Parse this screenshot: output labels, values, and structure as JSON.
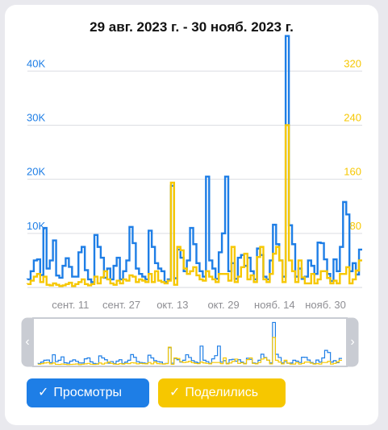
{
  "header": {
    "date_range": "29 авг. 2023 г. - 30 нояб. 2023 г."
  },
  "navigator": {
    "left_arrow": "‹",
    "right_arrow": "›"
  },
  "filters": [
    {
      "label": "Просмотры",
      "check": "✓",
      "color": "#1e7ee6"
    },
    {
      "label": "Поделились",
      "check": "✓",
      "color": "#f6c700"
    }
  ],
  "chart_data": {
    "type": "line",
    "x_tick_labels": [
      "сент. 11",
      "сент. 27",
      "окт. 13",
      "окт. 29",
      "нояб. 14",
      "нояб. 30"
    ],
    "x_tick_index": [
      13,
      29,
      45,
      61,
      77,
      93
    ],
    "y_left": {
      "ticks": [
        10000,
        20000,
        30000,
        40000
      ],
      "tick_labels": [
        "10K",
        "20K",
        "30K",
        "40K"
      ],
      "range": [
        0,
        46000
      ],
      "color": "#1e7ee6"
    },
    "y_right": {
      "ticks": [
        80,
        160,
        240,
        320
      ],
      "tick_labels": [
        "80",
        "160",
        "240",
        "320"
      ],
      "range": [
        0,
        368
      ],
      "color": "#f6c700"
    },
    "grid": true,
    "step": true,
    "series": [
      {
        "name": "Просмотры",
        "axis": "left",
        "color": "#1e7ee6",
        "values": [
          1500,
          3000,
          5000,
          5200,
          2300,
          11000,
          3500,
          5000,
          8700,
          2200,
          1800,
          4000,
          5400,
          3800,
          2000,
          2000,
          6500,
          7500,
          3200,
          1500,
          1000,
          9700,
          7500,
          5500,
          1800,
          3500,
          1500,
          4000,
          5500,
          1500,
          3000,
          5000,
          11200,
          8200,
          3500,
          2500,
          2000,
          1500,
          10500,
          7500,
          4500,
          3500,
          3000,
          1000,
          1500,
          18800,
          1700,
          7000,
          5500,
          3000,
          5000,
          11000,
          8000,
          4500,
          3000,
          2000,
          20500,
          5000,
          3500,
          1600,
          6500,
          10000,
          20500,
          3000,
          4500,
          1600,
          5500,
          6000,
          4000,
          5500,
          3000,
          1500,
          7200,
          6000,
          2000,
          1500,
          5000,
          11600,
          8000,
          5000,
          2000,
          46500,
          11500,
          8000,
          2000,
          3500,
          1600,
          2000,
          5000,
          4000,
          2500,
          8300,
          8200,
          5200,
          2500,
          1200,
          5200,
          3000,
          7500,
          15800,
          13500,
          3000,
          4500,
          2400,
          7000
        ]
      },
      {
        "name": "Поделились",
        "axis": "right",
        "color": "#f6c700",
        "values": [
          5,
          10,
          16,
          20,
          8,
          16,
          4,
          3,
          6,
          4,
          2,
          3,
          5,
          7,
          2,
          5,
          8,
          12,
          5,
          3,
          5,
          16,
          6,
          15,
          24,
          12,
          6,
          4,
          10,
          6,
          12,
          10,
          18,
          16,
          8,
          12,
          10,
          8,
          20,
          8,
          24,
          10,
          8,
          6,
          10,
          155,
          4,
          60,
          55,
          28,
          20,
          24,
          30,
          18,
          12,
          10,
          24,
          16,
          12,
          8,
          20,
          20,
          20,
          10,
          60,
          8,
          16,
          30,
          50,
          12,
          18,
          8,
          45,
          60,
          12,
          8,
          20,
          50,
          60,
          40,
          8,
          240,
          40,
          24,
          8,
          40,
          15,
          6,
          6,
          20,
          6,
          12,
          24,
          24,
          14,
          6,
          10,
          6,
          20,
          20,
          30,
          6,
          12,
          25,
          40
        ]
      }
    ]
  }
}
